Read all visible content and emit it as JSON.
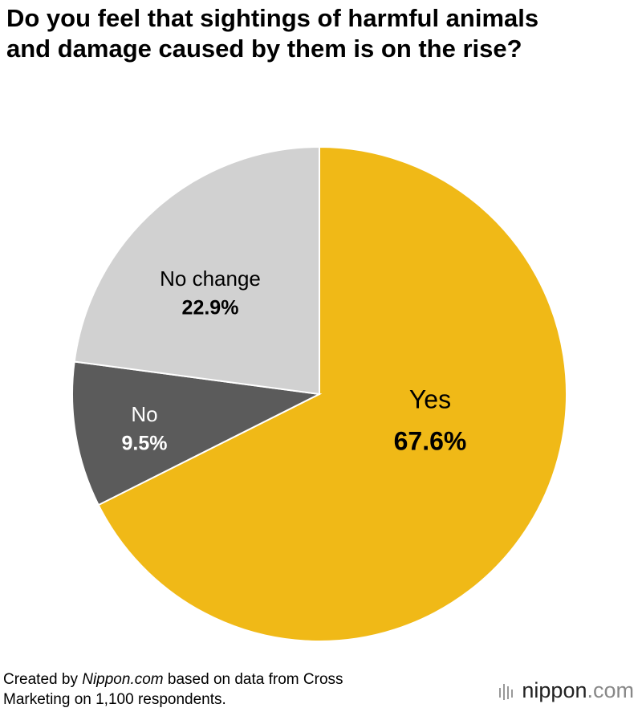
{
  "chart_data": {
    "type": "pie",
    "title": "Do you feel that sightings of harmful animals and damage caused by them is on the rise?",
    "categories": [
      "Yes",
      "No",
      "No change"
    ],
    "values": [
      67.6,
      9.5,
      22.9
    ],
    "value_labels": [
      "67.6%",
      "9.5%",
      "22.9%"
    ],
    "colors": [
      "#f0b917",
      "#5b5b5b",
      "#d1d1d1"
    ],
    "label_colors": [
      "#000000",
      "#ffffff",
      "#000000"
    ],
    "source": {
      "prefix": "Created by",
      "site": "Nippon.com",
      "rest": "based on data from Cross Marketing on 1,100 respondents."
    },
    "logo": {
      "name": "nippon",
      "suffix": ".com"
    }
  }
}
